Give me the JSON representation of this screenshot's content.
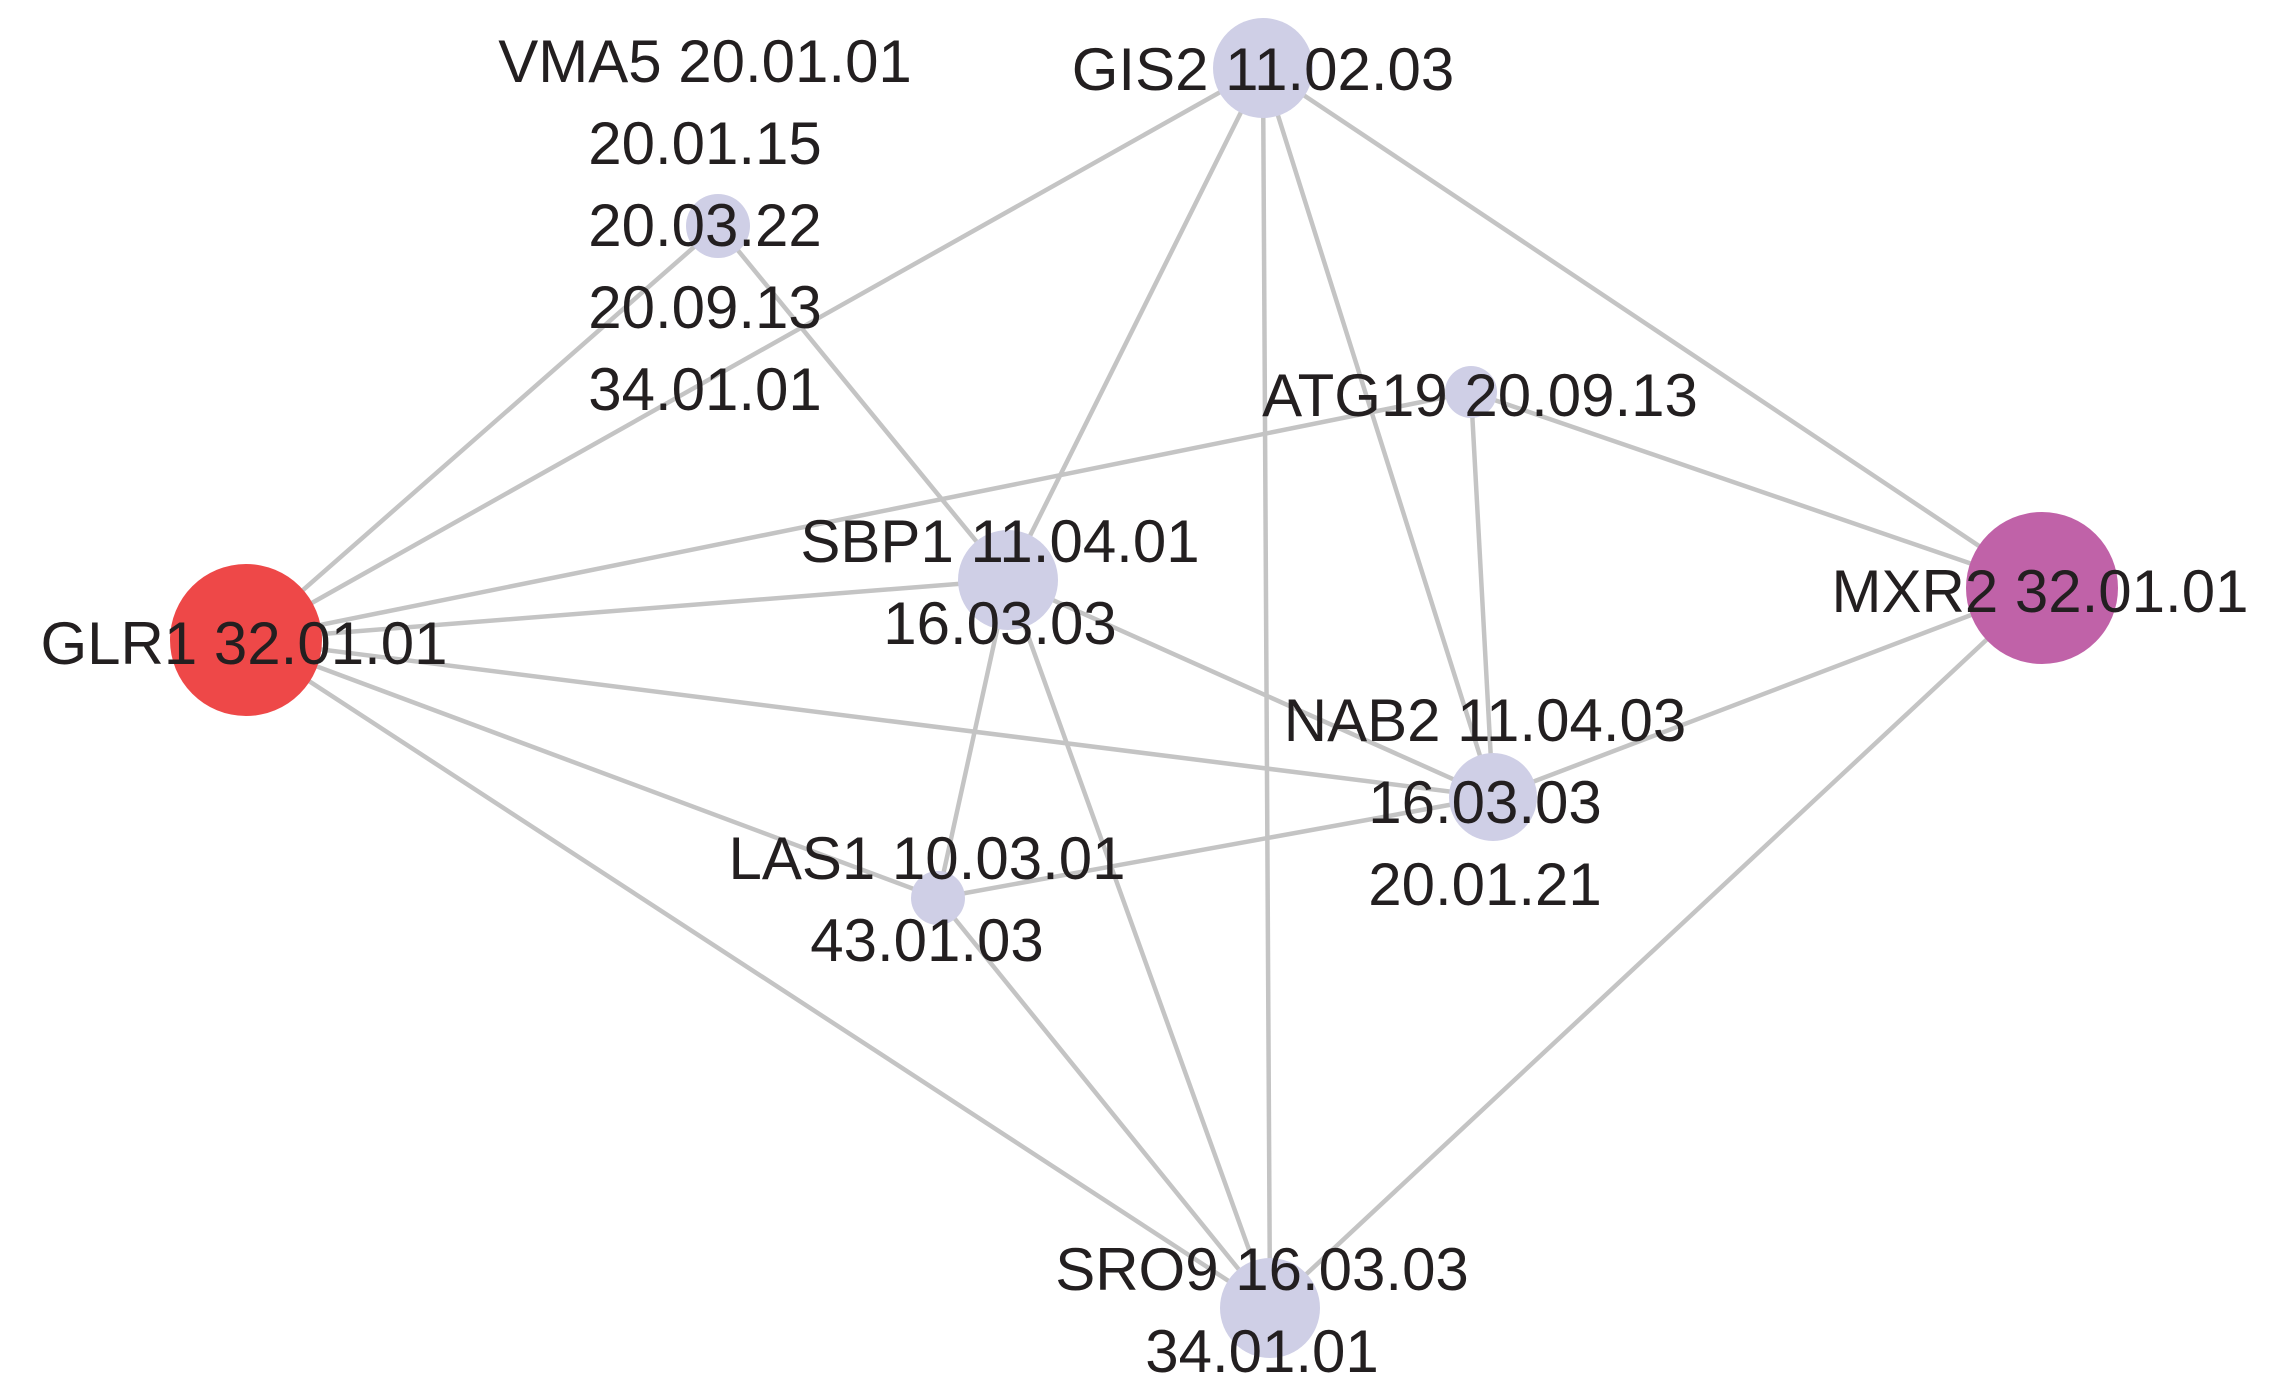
{
  "colors": {
    "edge": "#c4c4c4",
    "default_node": "#cfcfe6",
    "glr1_node": "#ee4848",
    "mxr2_node": "#c062a8",
    "label": "#231f20"
  },
  "nodes": [
    {
      "id": "vma5",
      "lines": [
        "VMA5 20.01.01",
        "20.01.15",
        "20.03.22",
        "20.09.13",
        "34.01.01"
      ],
      "color": "#cfcfe6"
    },
    {
      "id": "gis2",
      "lines": [
        "GIS2 11.02.03"
      ],
      "color": "#cfcfe6"
    },
    {
      "id": "atg19",
      "lines": [
        "ATG19 20.09.13"
      ],
      "color": "#cfcfe6"
    },
    {
      "id": "sbp1",
      "lines": [
        "SBP1 11.04.01",
        "16.03.03"
      ],
      "color": "#cfcfe6"
    },
    {
      "id": "glr1",
      "lines": [
        "GLR1 32.01.01"
      ],
      "color": "#ee4848"
    },
    {
      "id": "mxr2",
      "lines": [
        "MXR2 32.01.01"
      ],
      "color": "#c062a8"
    },
    {
      "id": "nab2",
      "lines": [
        "NAB2 11.04.03",
        "16.03.03",
        "20.01.21"
      ],
      "color": "#cfcfe6"
    },
    {
      "id": "las1",
      "lines": [
        "LAS1 10.03.01",
        "43.01.03"
      ],
      "color": "#cfcfe6"
    },
    {
      "id": "sro9",
      "lines": [
        "SRO9 16.03.03",
        "34.01.01"
      ],
      "color": "#cfcfe6"
    }
  ],
  "edges": [
    [
      "glr1",
      "vma5"
    ],
    [
      "glr1",
      "gis2"
    ],
    [
      "glr1",
      "atg19"
    ],
    [
      "glr1",
      "sbp1"
    ],
    [
      "glr1",
      "nab2"
    ],
    [
      "glr1",
      "las1"
    ],
    [
      "glr1",
      "sro9"
    ],
    [
      "vma5",
      "sbp1"
    ],
    [
      "gis2",
      "sbp1"
    ],
    [
      "gis2",
      "nab2"
    ],
    [
      "gis2",
      "sro9"
    ],
    [
      "gis2",
      "mxr2"
    ],
    [
      "atg19",
      "nab2"
    ],
    [
      "atg19",
      "mxr2"
    ],
    [
      "sbp1",
      "nab2"
    ],
    [
      "sbp1",
      "las1"
    ],
    [
      "sbp1",
      "sro9"
    ],
    [
      "nab2",
      "las1"
    ],
    [
      "nab2",
      "mxr2"
    ],
    [
      "las1",
      "sro9"
    ],
    [
      "mxr2",
      "sro9"
    ]
  ]
}
